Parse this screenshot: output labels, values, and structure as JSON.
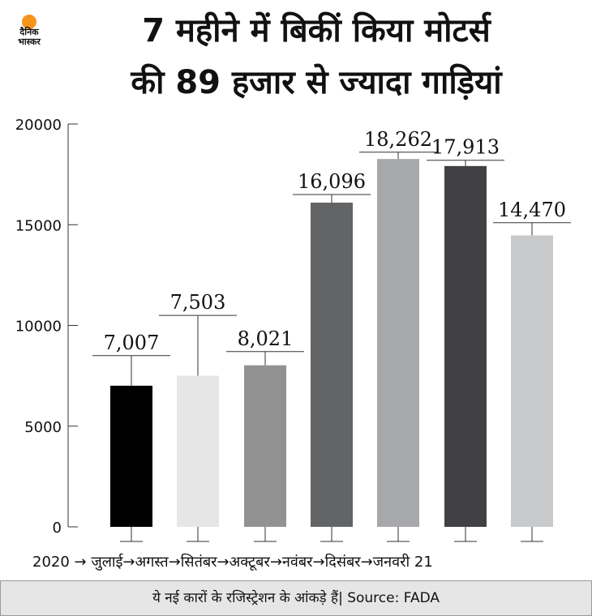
{
  "logo": {
    "line1": "दैनिक",
    "line2": "भास्कर"
  },
  "title": {
    "line1": "7 महीने में बिकीं किया मोटर्स",
    "line2": "की 89 हजार से ज्यादा गाड़ियां"
  },
  "colors": {
    "bars": [
      "#000000",
      "#e6e6e7",
      "#929292",
      "#636465",
      "#a7a8aa",
      "#414143",
      "#c8c9cb"
    ]
  },
  "chart_data": {
    "type": "bar",
    "categories": [
      "जुलाई",
      "अगस्त",
      "सितंबर",
      "अक्टूबर",
      "नवंबर",
      "दिसंबर",
      "जनवरी 21"
    ],
    "values": [
      7007,
      7503,
      8021,
      16096,
      18262,
      17913,
      14470
    ],
    "value_labels": [
      "7,007",
      "7,503",
      "8,021",
      "16,096",
      "18,262",
      "17,913",
      "14,470"
    ],
    "error_high": [
      8500,
      10500,
      8700,
      16500,
      18600,
      18200,
      15100
    ],
    "xaxis_prefix": "2020",
    "xaxis_arrow": "→",
    "yticks": [
      0,
      5000,
      10000,
      15000,
      20000
    ],
    "ylim": [
      0,
      20000
    ],
    "grid": false
  },
  "footer": {
    "text": "ये नई कारों के रजिस्ट्रेशन के आंकड़े हैं| Source: FADA"
  }
}
